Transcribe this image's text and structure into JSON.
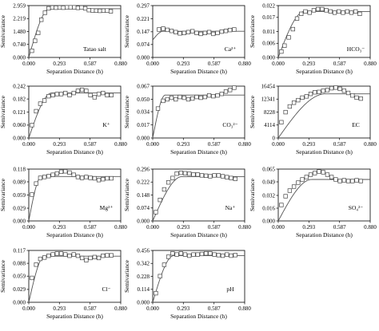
{
  "chart_data": [
    {
      "type": "scatter",
      "label": "Tatao salt",
      "xlabel": "Separation Distance (h)",
      "ylabel": "Semivariance",
      "xticks": [
        "0.000",
        "0.293",
        "0.587",
        "0.880"
      ],
      "yticks": [
        "0.000",
        "0.740",
        "1.480",
        "2.219",
        "2.959"
      ],
      "xlim": [
        0,
        0.88
      ],
      "ylim": [
        0,
        2.959
      ],
      "points": [
        [
          0.03,
          0.38
        ],
        [
          0.06,
          0.95
        ],
        [
          0.09,
          1.4
        ],
        [
          0.12,
          2.15
        ],
        [
          0.155,
          2.55
        ],
        [
          0.19,
          2.8
        ],
        [
          0.225,
          2.85
        ],
        [
          0.26,
          2.84
        ],
        [
          0.295,
          2.85
        ],
        [
          0.33,
          2.84
        ],
        [
          0.365,
          2.86
        ],
        [
          0.4,
          2.86
        ],
        [
          0.435,
          2.86
        ],
        [
          0.47,
          2.83
        ],
        [
          0.505,
          2.85
        ],
        [
          0.54,
          2.8
        ],
        [
          0.575,
          2.7
        ],
        [
          0.61,
          2.68
        ],
        [
          0.645,
          2.67
        ],
        [
          0.68,
          2.66
        ],
        [
          0.715,
          2.67
        ],
        [
          0.75,
          2.68
        ],
        [
          0.785,
          2.63
        ]
      ],
      "model": {
        "nugget": 0.0,
        "sill": 2.78,
        "range": 0.2
      }
    },
    {
      "type": "scatter",
      "label": "Ca²⁺",
      "xlabel": "Separation Distance (h)",
      "ylabel": "Semivariance",
      "xticks": [
        "0.000",
        "0.293",
        "0.587",
        "0.880"
      ],
      "yticks": [
        "0.000",
        "0.074",
        "0.147",
        "0.221",
        "0.297"
      ],
      "xlim": [
        0,
        0.88
      ],
      "ylim": [
        0,
        0.297
      ],
      "points": [
        [
          0.06,
          0.16
        ],
        [
          0.1,
          0.165
        ],
        [
          0.14,
          0.158
        ],
        [
          0.18,
          0.152
        ],
        [
          0.22,
          0.145
        ],
        [
          0.26,
          0.138
        ],
        [
          0.3,
          0.14
        ],
        [
          0.34,
          0.145
        ],
        [
          0.38,
          0.15
        ],
        [
          0.42,
          0.14
        ],
        [
          0.46,
          0.135
        ],
        [
          0.5,
          0.14
        ],
        [
          0.54,
          0.145
        ],
        [
          0.58,
          0.135
        ],
        [
          0.62,
          0.14
        ],
        [
          0.66,
          0.148
        ],
        [
          0.7,
          0.152
        ],
        [
          0.74,
          0.157
        ],
        [
          0.78,
          0.16
        ]
      ],
      "model": {
        "nugget": 0.1,
        "sill": 0.15,
        "range": 0.1
      }
    },
    {
      "type": "scatter",
      "label": "HCO₃⁻",
      "xlabel": "Separation Distance (h)",
      "ylabel": "Semivariance",
      "xticks": [
        "0.000",
        "0.293",
        "0.587",
        "0.880"
      ],
      "yticks": [
        "0.000",
        "0.006",
        "0.011",
        "0.017",
        "0.022"
      ],
      "xlim": [
        0,
        0.88
      ],
      "ylim": [
        0,
        0.022
      ],
      "points": [
        [
          0.03,
          0.0025
        ],
        [
          0.06,
          0.005
        ],
        [
          0.1,
          0.0085
        ],
        [
          0.14,
          0.012
        ],
        [
          0.18,
          0.0165
        ],
        [
          0.22,
          0.0185
        ],
        [
          0.26,
          0.0195
        ],
        [
          0.3,
          0.019
        ],
        [
          0.34,
          0.02
        ],
        [
          0.38,
          0.0205
        ],
        [
          0.42,
          0.0205
        ],
        [
          0.46,
          0.02
        ],
        [
          0.5,
          0.0195
        ],
        [
          0.54,
          0.019
        ],
        [
          0.58,
          0.0195
        ],
        [
          0.62,
          0.019
        ],
        [
          0.66,
          0.0195
        ],
        [
          0.7,
          0.019
        ],
        [
          0.74,
          0.0195
        ],
        [
          0.78,
          0.0185
        ]
      ],
      "model": {
        "nugget": 0.0,
        "sill": 0.0195,
        "range": 0.25
      }
    },
    {
      "type": "scatter",
      "label": "K⁺",
      "xlabel": "Separation Distance (h)",
      "ylabel": "Semivariance",
      "xticks": [
        "0.000",
        "0.293",
        "0.587",
        "0.880"
      ],
      "yticks": [
        "0.000",
        "0.060",
        "0.121",
        "0.182",
        "0.242"
      ],
      "xlim": [
        0,
        0.88
      ],
      "ylim": [
        0,
        0.242
      ],
      "points": [
        [
          0.03,
          0.06
        ],
        [
          0.07,
          0.125
        ],
        [
          0.11,
          0.16
        ],
        [
          0.15,
          0.175
        ],
        [
          0.19,
          0.195
        ],
        [
          0.23,
          0.2
        ],
        [
          0.27,
          0.205
        ],
        [
          0.31,
          0.205
        ],
        [
          0.35,
          0.21
        ],
        [
          0.39,
          0.2
        ],
        [
          0.43,
          0.21
        ],
        [
          0.47,
          0.22
        ],
        [
          0.51,
          0.225
        ],
        [
          0.55,
          0.22
        ],
        [
          0.59,
          0.2
        ],
        [
          0.63,
          0.19
        ],
        [
          0.67,
          0.205
        ],
        [
          0.71,
          0.21
        ],
        [
          0.75,
          0.2
        ],
        [
          0.79,
          0.2
        ]
      ],
      "model": {
        "nugget": 0.0,
        "sill": 0.21,
        "range": 0.22
      }
    },
    {
      "type": "scatter",
      "label": "CO₃²⁻",
      "xlabel": "Separation Distance (h)",
      "ylabel": "Semivariance",
      "xticks": [
        "0.000",
        "0.293",
        "0.587",
        "0.880"
      ],
      "yticks": [
        "0.000",
        "0.017",
        "0.034",
        "0.050",
        "0.067"
      ],
      "xlim": [
        0,
        0.88
      ],
      "ylim": [
        0,
        0.067
      ],
      "points": [
        [
          0.05,
          0.038
        ],
        [
          0.1,
          0.048
        ],
        [
          0.14,
          0.05
        ],
        [
          0.18,
          0.052
        ],
        [
          0.22,
          0.05
        ],
        [
          0.26,
          0.053
        ],
        [
          0.3,
          0.052
        ],
        [
          0.34,
          0.05
        ],
        [
          0.38,
          0.051
        ],
        [
          0.42,
          0.053
        ],
        [
          0.46,
          0.052
        ],
        [
          0.5,
          0.053
        ],
        [
          0.54,
          0.055
        ],
        [
          0.58,
          0.054
        ],
        [
          0.62,
          0.055
        ],
        [
          0.66,
          0.057
        ],
        [
          0.7,
          0.06
        ],
        [
          0.74,
          0.062
        ],
        [
          0.78,
          0.065
        ]
      ],
      "model": {
        "nugget": 0.0,
        "sill": 0.0555,
        "range": 0.12
      }
    },
    {
      "type": "scatter",
      "label": "EC",
      "xlabel": "Separation Distance (h)",
      "ylabel": "Semivariance",
      "xticks": [
        "0.000",
        "0.293",
        "0.587",
        "0.880"
      ],
      "yticks": [
        "0",
        "4114",
        "8228",
        "12341",
        "16454"
      ],
      "xlim": [
        0,
        0.88
      ],
      "ylim": [
        0,
        16454
      ],
      "points": [
        [
          0.03,
          5000
        ],
        [
          0.07,
          8200
        ],
        [
          0.11,
          10000
        ],
        [
          0.15,
          11200
        ],
        [
          0.19,
          12000
        ],
        [
          0.23,
          12800
        ],
        [
          0.27,
          13200
        ],
        [
          0.31,
          14000
        ],
        [
          0.35,
          14500
        ],
        [
          0.39,
          14600
        ],
        [
          0.43,
          15000
        ],
        [
          0.47,
          15200
        ],
        [
          0.51,
          15800
        ],
        [
          0.55,
          16000
        ],
        [
          0.59,
          15600
        ],
        [
          0.63,
          15000
        ],
        [
          0.67,
          14300
        ],
        [
          0.71,
          13500
        ],
        [
          0.75,
          12800
        ],
        [
          0.79,
          12500
        ]
      ],
      "model": {
        "nugget": 0.0,
        "sill": 14000,
        "range": 0.45
      }
    },
    {
      "type": "scatter",
      "label": "Mg²⁺",
      "xlabel": "Separation Distance (h)",
      "ylabel": "Semivariance",
      "xticks": [
        "0.000",
        "0.293",
        "0.587",
        "0.880"
      ],
      "yticks": [
        "0.000",
        "0.029",
        "0.059",
        "0.089",
        "0.118"
      ],
      "xlim": [
        0,
        0.88
      ],
      "ylim": [
        0,
        0.118
      ],
      "points": [
        [
          0.03,
          0.06
        ],
        [
          0.07,
          0.085
        ],
        [
          0.11,
          0.098
        ],
        [
          0.15,
          0.1
        ],
        [
          0.19,
          0.102
        ],
        [
          0.23,
          0.105
        ],
        [
          0.27,
          0.108
        ],
        [
          0.31,
          0.112
        ],
        [
          0.35,
          0.113
        ],
        [
          0.39,
          0.11
        ],
        [
          0.43,
          0.105
        ],
        [
          0.47,
          0.1
        ],
        [
          0.51,
          0.098
        ],
        [
          0.55,
          0.1
        ],
        [
          0.59,
          0.098
        ],
        [
          0.63,
          0.097
        ],
        [
          0.67,
          0.093
        ],
        [
          0.71,
          0.095
        ],
        [
          0.75,
          0.097
        ],
        [
          0.79,
          0.097
        ]
      ],
      "model": {
        "nugget": 0.0,
        "sill": 0.101,
        "range": 0.12
      }
    },
    {
      "type": "scatter",
      "label": "Na⁺",
      "xlabel": "Separation Distance (h)",
      "ylabel": "Semivariance",
      "xticks": [
        "0.000",
        "0.293",
        "0.587",
        "0.880"
      ],
      "yticks": [
        "0.000",
        "0.074",
        "0.148",
        "0.222",
        "0.296"
      ],
      "xlim": [
        0,
        0.88
      ],
      "ylim": [
        0,
        0.296
      ],
      "points": [
        [
          0.03,
          0.05
        ],
        [
          0.07,
          0.12
        ],
        [
          0.11,
          0.18
        ],
        [
          0.15,
          0.22
        ],
        [
          0.19,
          0.245
        ],
        [
          0.23,
          0.27
        ],
        [
          0.27,
          0.275
        ],
        [
          0.31,
          0.272
        ],
        [
          0.35,
          0.27
        ],
        [
          0.39,
          0.265
        ],
        [
          0.43,
          0.265
        ],
        [
          0.47,
          0.26
        ],
        [
          0.51,
          0.258
        ],
        [
          0.55,
          0.255
        ],
        [
          0.59,
          0.26
        ],
        [
          0.63,
          0.26
        ],
        [
          0.67,
          0.255
        ],
        [
          0.71,
          0.25
        ],
        [
          0.75,
          0.245
        ],
        [
          0.79,
          0.24
        ]
      ],
      "model": {
        "nugget": 0.0,
        "sill": 0.253,
        "range": 0.28
      }
    },
    {
      "type": "scatter",
      "label": "SO₄²⁻",
      "xlabel": "Separation Distance (h)",
      "ylabel": "Semivariance",
      "xticks": [
        "0.000",
        "0.293",
        "0.587",
        "0.880"
      ],
      "yticks": [
        "0.000",
        "0.016",
        "0.032",
        "0.049",
        "0.065"
      ],
      "xlim": [
        0,
        0.88
      ],
      "ylim": [
        0,
        0.065
      ],
      "points": [
        [
          0.03,
          0.02
        ],
        [
          0.07,
          0.031
        ],
        [
          0.11,
          0.038
        ],
        [
          0.15,
          0.043
        ],
        [
          0.19,
          0.048
        ],
        [
          0.23,
          0.052
        ],
        [
          0.27,
          0.055
        ],
        [
          0.31,
          0.058
        ],
        [
          0.35,
          0.06
        ],
        [
          0.39,
          0.062
        ],
        [
          0.43,
          0.061
        ],
        [
          0.47,
          0.058
        ],
        [
          0.51,
          0.055
        ],
        [
          0.55,
          0.052
        ],
        [
          0.59,
          0.05
        ],
        [
          0.63,
          0.051
        ],
        [
          0.67,
          0.05
        ],
        [
          0.71,
          0.05
        ],
        [
          0.75,
          0.051
        ],
        [
          0.79,
          0.05
        ]
      ],
      "model": {
        "nugget": 0.0,
        "sill": 0.052,
        "range": 0.32
      }
    },
    {
      "type": "scatter",
      "label": "Cl⁻",
      "xlabel": "Separation Distance (h)",
      "ylabel": "Semivariance",
      "xticks": [
        "0.000",
        "0.293",
        "0.587",
        "0.880"
      ],
      "yticks": [
        "0.000",
        "0.029",
        "0.059",
        "0.088",
        "0.117"
      ],
      "xlim": [
        0,
        0.88
      ],
      "ylim": [
        0,
        0.117
      ],
      "points": [
        [
          0.03,
          0.055
        ],
        [
          0.07,
          0.085
        ],
        [
          0.11,
          0.098
        ],
        [
          0.15,
          0.101
        ],
        [
          0.19,
          0.105
        ],
        [
          0.23,
          0.108
        ],
        [
          0.27,
          0.11
        ],
        [
          0.31,
          0.11
        ],
        [
          0.35,
          0.108
        ],
        [
          0.39,
          0.105
        ],
        [
          0.43,
          0.108
        ],
        [
          0.47,
          0.105
        ],
        [
          0.51,
          0.1
        ],
        [
          0.55,
          0.095
        ],
        [
          0.59,
          0.1
        ],
        [
          0.63,
          0.102
        ],
        [
          0.67,
          0.1
        ],
        [
          0.71,
          0.105
        ],
        [
          0.75,
          0.106
        ],
        [
          0.79,
          0.106
        ]
      ],
      "model": {
        "nugget": 0.0,
        "sill": 0.104,
        "range": 0.15
      }
    },
    {
      "type": "scatter",
      "label": "pH",
      "xlabel": "Separation Distance (h)",
      "ylabel": "Semivariance",
      "xticks": [
        "0.000",
        "0.293",
        "0.587",
        "0.880"
      ],
      "yticks": [
        "0.000",
        "0.114",
        "0.228",
        "0.342",
        "0.456"
      ],
      "xlim": [
        0,
        0.88
      ],
      "ylim": [
        0,
        0.456
      ],
      "points": [
        [
          0.03,
          0.08
        ],
        [
          0.07,
          0.23
        ],
        [
          0.11,
          0.33
        ],
        [
          0.15,
          0.4
        ],
        [
          0.19,
          0.43
        ],
        [
          0.23,
          0.42
        ],
        [
          0.27,
          0.43
        ],
        [
          0.31,
          0.42
        ],
        [
          0.35,
          0.41
        ],
        [
          0.39,
          0.42
        ],
        [
          0.43,
          0.42
        ],
        [
          0.47,
          0.425
        ],
        [
          0.51,
          0.43
        ],
        [
          0.55,
          0.43
        ],
        [
          0.59,
          0.42
        ],
        [
          0.63,
          0.415
        ],
        [
          0.67,
          0.41
        ],
        [
          0.71,
          0.42
        ],
        [
          0.75,
          0.41
        ],
        [
          0.79,
          0.415
        ]
      ],
      "model": {
        "nugget": 0.0,
        "sill": 0.41,
        "range": 0.2
      }
    }
  ]
}
